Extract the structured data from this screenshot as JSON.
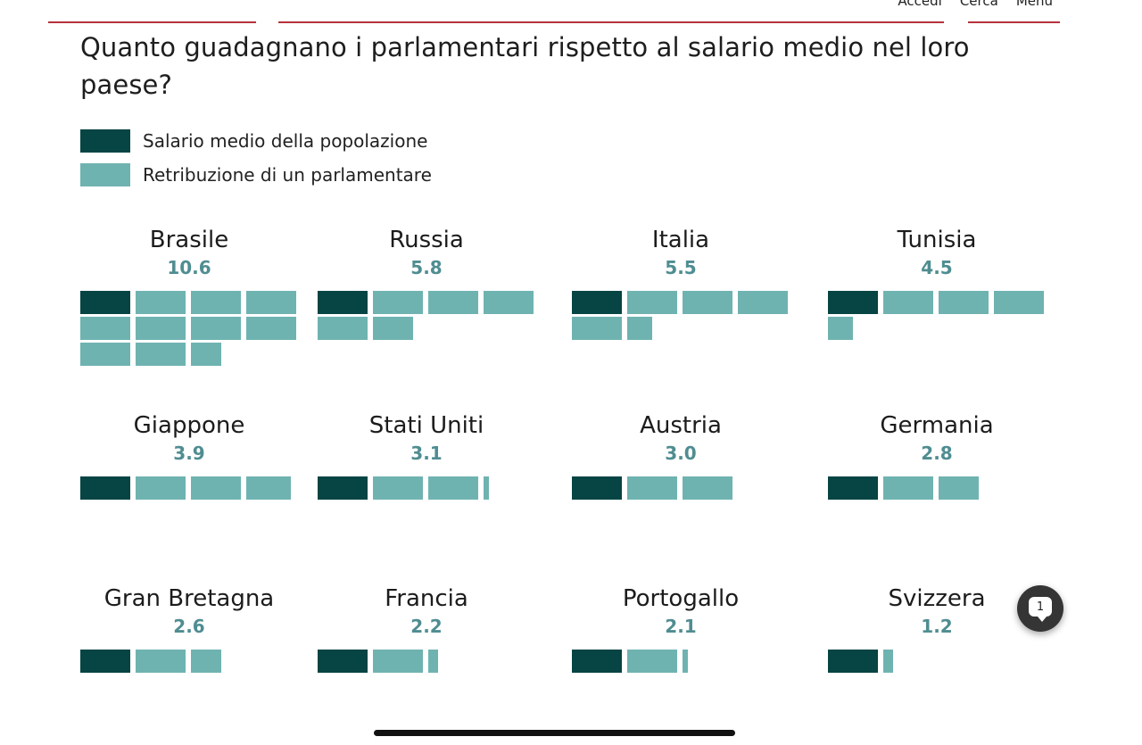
{
  "nav": {
    "links": [
      "Accedi",
      "Cerca",
      "Menu"
    ]
  },
  "title": "Quanto guadagnano i parlamentari rispetto al salario medio nel loro paese?",
  "legend": [
    {
      "label": "Salario medio della popolazione",
      "color": "#074444"
    },
    {
      "label": "Retribuzione di un parlamentare",
      "color": "#6fb3b1"
    }
  ],
  "comments": {
    "count": "1"
  },
  "chart_data": {
    "type": "waffle",
    "unit_note": "",
    "series": [
      {
        "name": "Salario medio della popolazione",
        "color": "#074444"
      },
      {
        "name": "Retribuzione di un parlamentare",
        "color": "#6fb3b1"
      }
    ],
    "countries": [
      {
        "name": "Brasile",
        "ratio": 10.6,
        "ratio_label": "10.6"
      },
      {
        "name": "Russia",
        "ratio": 5.8,
        "ratio_label": "5.8"
      },
      {
        "name": "Italia",
        "ratio": 5.5,
        "ratio_label": "5.5"
      },
      {
        "name": "Tunisia",
        "ratio": 4.5,
        "ratio_label": "4.5"
      },
      {
        "name": "Giappone",
        "ratio": 3.9,
        "ratio_label": "3.9"
      },
      {
        "name": "Stati Uniti",
        "ratio": 3.1,
        "ratio_label": "3.1"
      },
      {
        "name": "Austria",
        "ratio": 3.0,
        "ratio_label": "3.0"
      },
      {
        "name": "Germania",
        "ratio": 2.8,
        "ratio_label": "2.8"
      },
      {
        "name": "Gran Bretagna",
        "ratio": 2.6,
        "ratio_label": "2.6"
      },
      {
        "name": "Francia",
        "ratio": 2.2,
        "ratio_label": "2.2"
      },
      {
        "name": "Portogallo",
        "ratio": 2.1,
        "ratio_label": "2.1"
      },
      {
        "name": "Svizzera",
        "ratio": 1.2,
        "ratio_label": "1.2"
      }
    ]
  }
}
